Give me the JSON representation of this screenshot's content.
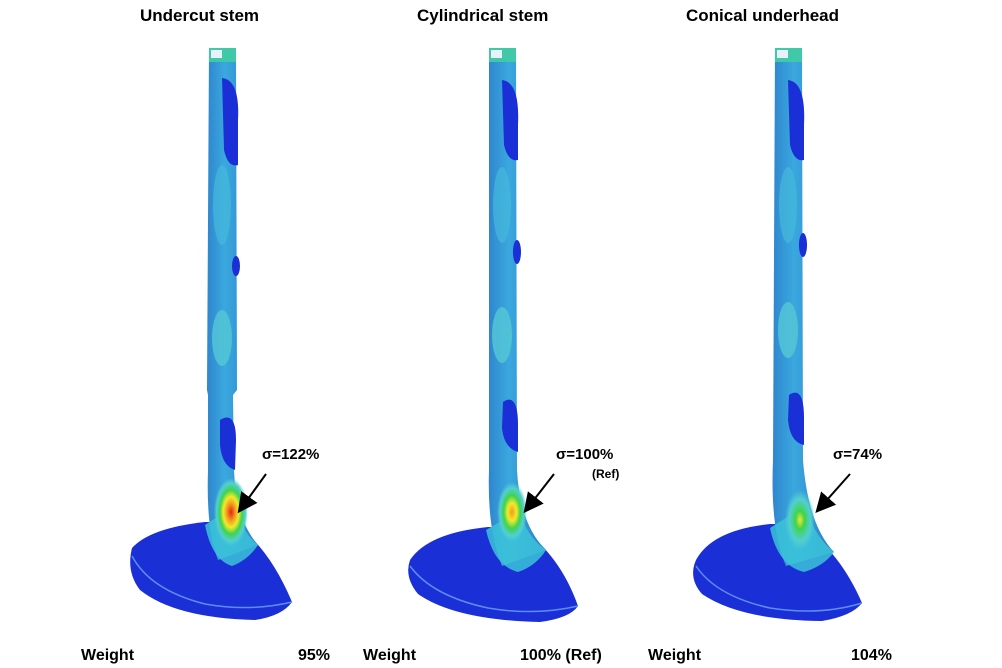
{
  "panels": [
    {
      "title": "Undercut stem",
      "stress_label": "σ=122%",
      "stress_note": "",
      "weight_label": "Weight",
      "weight_value": "95%"
    },
    {
      "title": "Cylindrical stem",
      "stress_label": "σ=100%",
      "stress_note": "(Ref)",
      "weight_label": "Weight",
      "weight_value": "100% (Ref)"
    },
    {
      "title": "Conical underhead",
      "stress_label": "σ=74%",
      "stress_note": "",
      "weight_label": "Weight",
      "weight_value": "104%"
    }
  ],
  "colors": {
    "stem_base": "#2f9ad6",
    "dark_blue": "#1a2fd6",
    "cyan_light": "#52cfd0",
    "green": "#3fd34f",
    "yellow": "#f2ea2a",
    "orange": "#f29a1f",
    "red": "#e52418",
    "head_dark": "#1522c8"
  }
}
